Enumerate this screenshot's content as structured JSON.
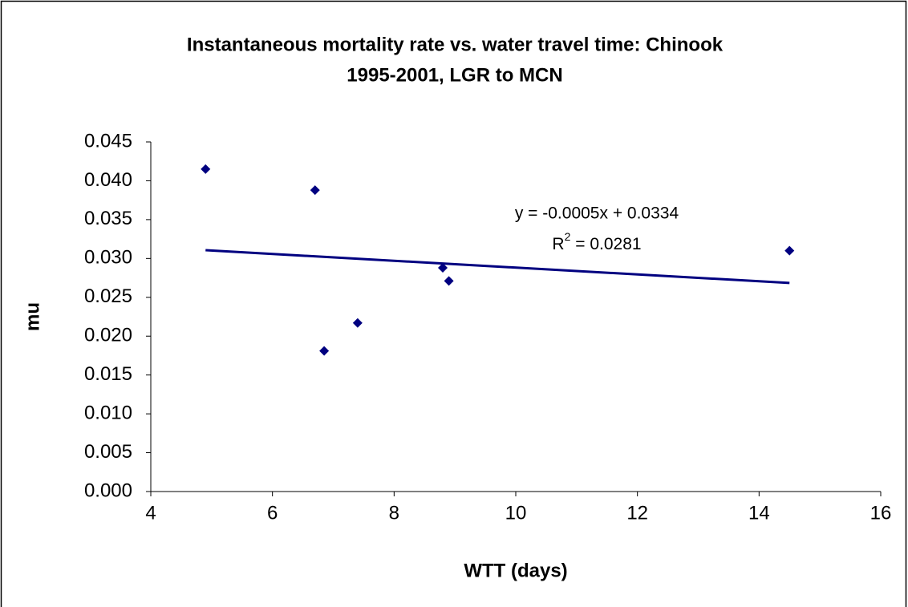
{
  "chart_data": {
    "type": "scatter",
    "title": "Instantaneous mortality rate vs. water travel time: Chinook",
    "subtitle": "1995-2001, LGR to MCN",
    "x_label": "WTT (days)",
    "y_label": "mu",
    "x": [
      4.9,
      6.7,
      6.85,
      7.4,
      8.8,
      8.9,
      14.5
    ],
    "series": [
      {
        "name": "mu",
        "color": "#000080",
        "values": [
          0.0415,
          0.0388,
          0.0181,
          0.0217,
          0.0288,
          0.0271,
          0.031
        ]
      }
    ],
    "trendline": {
      "type": "linear",
      "color": "#000080",
      "equation": "y = -0.0005x + 0.0334",
      "r_squared": [
        "R",
        "2",
        " = 0.0281"
      ]
    },
    "xlim": [
      4,
      16
    ],
    "xticks": [
      4,
      6,
      8,
      10,
      12,
      14,
      16
    ],
    "ylim": [
      0,
      0.045
    ],
    "yticks": [
      {
        "value": 0,
        "label": "0.000"
      },
      {
        "value": 0.005,
        "label": "0.005"
      },
      {
        "value": 0.01,
        "label": "0.010"
      },
      {
        "value": 0.015,
        "label": "0.015"
      },
      {
        "value": 0.02,
        "label": "0.020"
      },
      {
        "value": 0.025,
        "label": "0.025"
      },
      {
        "value": 0.03,
        "label": "0.030"
      },
      {
        "value": 0.035,
        "label": "0.035"
      },
      {
        "value": 0.04,
        "label": "0.040"
      },
      {
        "value": 0.045,
        "label": "0.045"
      }
    ],
    "grid": false
  }
}
